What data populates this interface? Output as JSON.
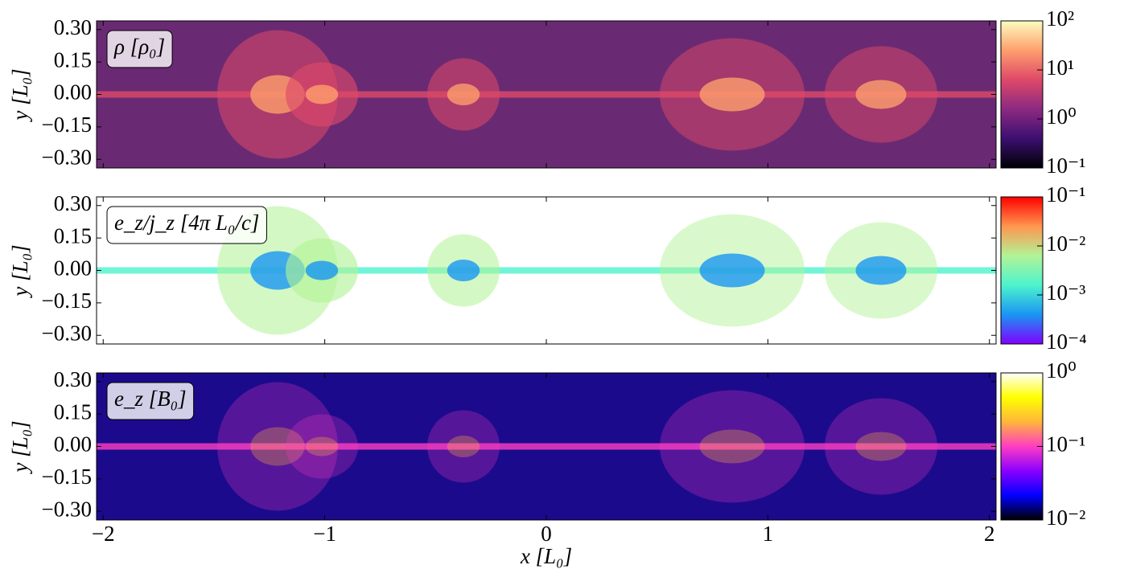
{
  "chart_data": [
    {
      "type": "heatmap",
      "label": "ρ [ρ₀]",
      "background": "#6a2a73",
      "ylabel": "y [L₀]",
      "ylim": [
        -0.34,
        0.34
      ],
      "yticks": [
        {
          "value": 0.3,
          "label": "0.30"
        },
        {
          "value": 0.15,
          "label": "0.15"
        },
        {
          "value": 0,
          "label": "0.00"
        },
        {
          "value": -0.15,
          "label": "−0.15"
        },
        {
          "value": -0.3,
          "label": "−0.30"
        }
      ],
      "colorbar": {
        "log": true,
        "lim": [
          0.1,
          100
        ],
        "ticks": [
          {
            "value": 0.1,
            "label": "10⁻¹"
          },
          {
            "value": 1,
            "label": "10⁰"
          },
          {
            "value": 10,
            "label": "10¹"
          },
          {
            "value": 100,
            "label": "10²"
          }
        ],
        "colors": [
          "#000004",
          "#3b0f70",
          "#8c2981",
          "#de4968",
          "#fe9f6d",
          "#fcfdbf"
        ]
      }
    },
    {
      "type": "heatmap",
      "label": "e_z/j_z [4π L₀/c]",
      "background": "#ffffff",
      "ylabel": "y [L₀]",
      "ylim": [
        -0.34,
        0.34
      ],
      "yticks": [
        {
          "value": 0.3,
          "label": "0.30"
        },
        {
          "value": 0.15,
          "label": "0.15"
        },
        {
          "value": 0,
          "label": "0.00"
        },
        {
          "value": -0.15,
          "label": "−0.15"
        },
        {
          "value": -0.3,
          "label": "−0.30"
        }
      ],
      "colorbar": {
        "log": true,
        "lim": [
          0.0001,
          0.1
        ],
        "ticks": [
          {
            "value": 0.0001,
            "label": "10⁻⁴"
          },
          {
            "value": 0.001,
            "label": "10⁻³"
          },
          {
            "value": 0.01,
            "label": "10⁻²"
          },
          {
            "value": 0.1,
            "label": "10⁻¹"
          }
        ],
        "colors": [
          "#8000ff",
          "#1996f3",
          "#4df3ce",
          "#b2f396",
          "#ff964f",
          "#ff0000"
        ]
      }
    },
    {
      "type": "heatmap",
      "label": "e_z [B₀]",
      "background": "#1c0a8c",
      "ylabel": "y [L₀]",
      "xlabel": "x [L₀]",
      "xlim": [
        -2.03,
        2.03
      ],
      "xticks": [
        {
          "value": -2,
          "label": "−2"
        },
        {
          "value": -1,
          "label": "−1"
        },
        0,
        1,
        2
      ],
      "ylim": [
        -0.34,
        0.34
      ],
      "yticks": [
        {
          "value": 0.3,
          "label": "0.30"
        },
        {
          "value": 0.15,
          "label": "0.15"
        },
        {
          "value": 0,
          "label": "0.00"
        },
        {
          "value": -0.15,
          "label": "−0.15"
        },
        {
          "value": -0.3,
          "label": "−0.30"
        }
      ],
      "colorbar": {
        "log": true,
        "lim": [
          0.01,
          1
        ],
        "ticks": [
          {
            "value": 0.01,
            "label": "10⁻²"
          },
          {
            "value": 0.1,
            "label": "10⁻¹"
          },
          {
            "value": 1,
            "label": "10⁰"
          }
        ],
        "colors": [
          "#000000",
          "#0000ff",
          "#8a00ff",
          "#ff3dc2",
          "#ffb63b",
          "#ffff00",
          "#ffffff"
        ]
      }
    }
  ]
}
